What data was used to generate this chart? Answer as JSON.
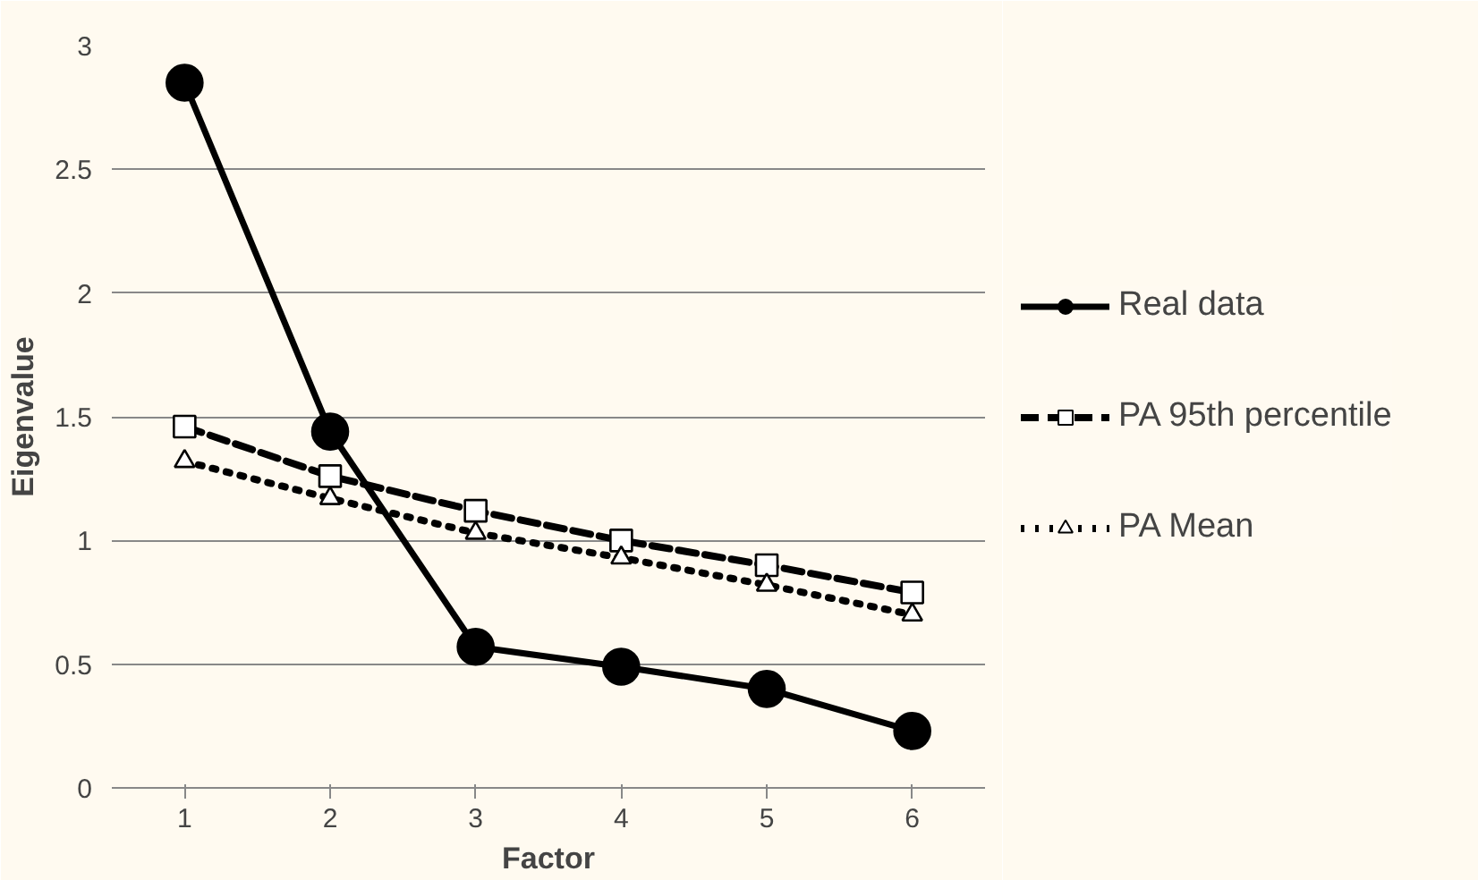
{
  "chart_data": {
    "type": "line",
    "xlabel": "Factor",
    "ylabel": "Eigenvalue",
    "categories": [
      "1",
      "2",
      "3",
      "4",
      "5",
      "6"
    ],
    "series": [
      {
        "name": "Real data",
        "color": "#000000",
        "marker": "circle",
        "line_style": "solid",
        "values": [
          2.85,
          1.44,
          0.57,
          0.49,
          0.4,
          0.23
        ]
      },
      {
        "name": "PA 95th percentile",
        "color": "#000000",
        "marker": "square",
        "line_style": "dashed",
        "values": [
          1.46,
          1.26,
          1.12,
          1.0,
          0.9,
          0.79
        ]
      },
      {
        "name": "PA Mean",
        "color": "#000000",
        "marker": "triangle",
        "line_style": "dotted",
        "values": [
          1.32,
          1.17,
          1.03,
          0.93,
          0.82,
          0.7
        ]
      }
    ],
    "ylim": [
      0,
      3
    ],
    "yticks": [
      0,
      0.5,
      1,
      1.5,
      2,
      2.5,
      3
    ],
    "grid": "y",
    "legend": "right"
  }
}
